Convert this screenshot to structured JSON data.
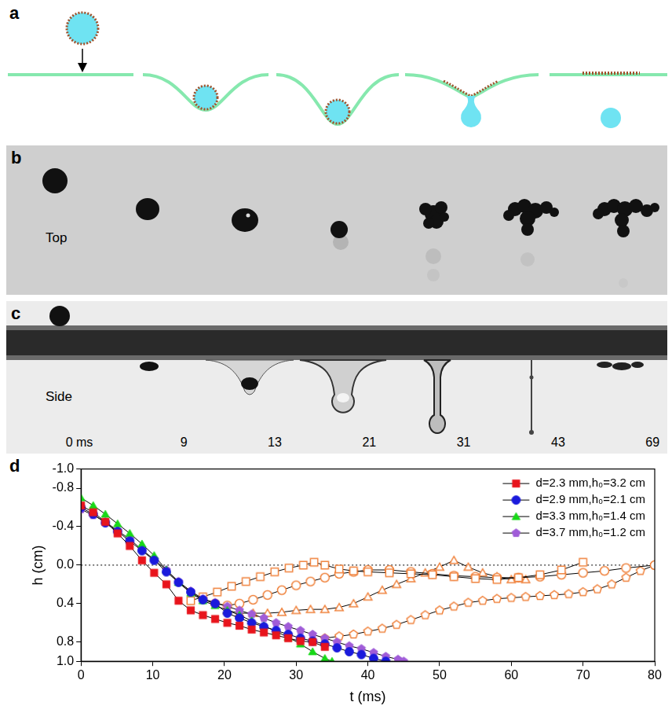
{
  "figure": {
    "panels": [
      "a",
      "b",
      "c",
      "d"
    ],
    "b": {
      "view": "Top"
    },
    "c": {
      "view": "Side",
      "times": [
        "0 ms",
        "9",
        "13",
        "21",
        "31",
        "43",
        "69"
      ]
    }
  },
  "chart_data": {
    "type": "line",
    "x_label": "t (ms)",
    "y_label": "h (cm)",
    "xlim": [
      0,
      80
    ],
    "xticks": [
      0,
      10,
      20,
      30,
      40,
      50,
      60,
      70,
      80
    ],
    "ylim": [
      1.0,
      -1.0
    ],
    "yticks": [
      {
        "value": -1.0,
        "label": "-1.0"
      },
      {
        "value": -0.8,
        "label": "-0.8"
      },
      {
        "value": -0.4,
        "label": "-0.4"
      },
      {
        "value": 0,
        "label": "0.0"
      },
      {
        "value": 0.4,
        "label": "0.4"
      },
      {
        "value": 0.8,
        "label": "0.8"
      },
      {
        "value": 1.0,
        "label": "1.0"
      }
    ],
    "grid": false,
    "legend": "upper right",
    "hlines": [
      0
    ],
    "series": [
      {
        "name": "d=2.3 mm,h₀=3.2 cm",
        "color": "#e8141c",
        "marker": "square",
        "x": [
          0,
          1.7,
          3.4,
          5.1,
          6.8,
          8.5,
          10.2,
          11.9,
          13.6,
          15.3,
          17,
          18.7,
          20.4,
          22.1,
          23.8,
          25.5,
          27.2,
          28.9,
          30.6,
          32.3,
          34
        ],
        "values": [
          -0.62,
          -0.55,
          -0.45,
          -0.33,
          -0.2,
          -0.05,
          0.08,
          0.2,
          0.37,
          0.47,
          0.52,
          0.56,
          0.6,
          0.63,
          0.67,
          0.7,
          0.73,
          0.76,
          0.79,
          0.8,
          0.85
        ]
      },
      {
        "name": "d=2.9 mm,h₀=2.1 cm",
        "color": "#1a1adc",
        "marker": "circle",
        "x": [
          0,
          1.7,
          3.4,
          5.1,
          6.8,
          8.5,
          10.2,
          11.9,
          13.6,
          15.3,
          17,
          18.7,
          20.4,
          22.1,
          23.8,
          25.5,
          27.2,
          28.9,
          30.6,
          32.3,
          34,
          35.7,
          37.4,
          39.1,
          40.8,
          42.5
        ],
        "values": [
          -0.6,
          -0.53,
          -0.44,
          -0.35,
          -0.25,
          -0.15,
          -0.05,
          0.07,
          0.18,
          0.28,
          0.36,
          0.4,
          0.5,
          0.55,
          0.6,
          0.64,
          0.68,
          0.72,
          0.76,
          0.79,
          0.82,
          0.86,
          0.9,
          0.93,
          0.97,
          1.0
        ]
      },
      {
        "name": "d=3.3 mm,h₀=1.4 cm",
        "color": "#17d817",
        "marker": "triangle",
        "x": [
          0,
          1.7,
          3.4,
          5.1,
          6.8,
          8.5,
          10.2,
          11.9,
          13.6,
          15.3,
          17,
          18.7,
          20.4,
          22.1,
          23.8,
          25.5,
          27.2,
          28.9,
          30.6,
          32.3,
          34,
          35
        ],
        "values": [
          -0.7,
          -0.62,
          -0.53,
          -0.43,
          -0.33,
          -0.22,
          -0.1,
          0.05,
          0.18,
          0.29,
          0.37,
          0.42,
          0.47,
          0.52,
          0.58,
          0.63,
          0.69,
          0.75,
          0.82,
          0.9,
          0.97,
          1.0
        ]
      },
      {
        "name": "d=3.7 mm,h₀=1.2 cm",
        "color": "#a05cd8",
        "marker": "pentagon",
        "x": [
          0,
          1.7,
          3.4,
          5.1,
          6.8,
          8.5,
          10.2,
          11.9,
          13.6,
          15.3,
          17,
          18.7,
          20.4,
          22.1,
          23.8,
          25.5,
          27.2,
          28.9,
          30.6,
          32.3,
          34,
          35.7,
          37.4,
          39.1,
          40.8,
          42.5,
          44.2,
          45
        ],
        "values": [
          -0.58,
          -0.52,
          -0.45,
          -0.36,
          -0.27,
          -0.16,
          -0.06,
          0.05,
          0.17,
          0.27,
          0.35,
          0.39,
          0.43,
          0.47,
          0.51,
          0.55,
          0.6,
          0.64,
          0.68,
          0.72,
          0.76,
          0.8,
          0.84,
          0.87,
          0.91,
          0.95,
          0.98,
          1.0
        ]
      },
      {
        "color": "#f0823c",
        "marker": "square-open",
        "x": [
          15.3,
          17,
          19,
          21,
          23,
          25,
          27,
          29,
          31,
          32.5,
          34,
          36,
          38,
          40,
          43,
          46,
          49,
          52,
          55,
          58,
          61,
          64,
          67,
          70
        ],
        "values": [
          0.37,
          0.33,
          0.28,
          0.22,
          0.17,
          0.12,
          0.07,
          0.03,
          0.0,
          -0.03,
          0.0,
          0.04,
          0.06,
          0.07,
          0.08,
          0.09,
          0.1,
          0.12,
          0.14,
          0.15,
          0.13,
          0.1,
          0.05,
          -0.03
        ]
      },
      {
        "color": "#f0823c",
        "marker": "circle-open",
        "x": [
          18.7,
          20.4,
          22.1,
          24,
          26,
          28,
          30,
          32,
          34,
          36,
          38,
          40,
          43,
          46,
          49,
          52,
          55,
          58,
          61,
          64,
          67,
          70,
          73,
          76,
          80
        ],
        "values": [
          0.4,
          0.42,
          0.4,
          0.36,
          0.31,
          0.26,
          0.21,
          0.17,
          0.13,
          0.09,
          0.07,
          0.05,
          0.05,
          0.07,
          0.09,
          0.11,
          0.12,
          0.13,
          0.13,
          0.12,
          0.1,
          0.08,
          0.06,
          0.03,
          0.0
        ]
      },
      {
        "color": "#f0823c",
        "marker": "triangle-open",
        "x": [
          20.4,
          22.1,
          24,
          26,
          28,
          30,
          32,
          34,
          36,
          38,
          40,
          42,
          44,
          46,
          48,
          50,
          52,
          54,
          56,
          58,
          60,
          62
        ],
        "values": [
          0.47,
          0.5,
          0.5,
          0.5,
          0.49,
          0.47,
          0.46,
          0.46,
          0.44,
          0.4,
          0.33,
          0.26,
          0.2,
          0.14,
          0.08,
          0.02,
          -0.05,
          0.02,
          0.08,
          0.12,
          0.15,
          0.15
        ]
      },
      {
        "color": "#f0823c",
        "marker": "pentagon-open",
        "x": [
          34,
          36,
          38,
          40,
          42,
          44,
          46,
          48,
          50,
          52,
          54,
          56,
          58,
          60,
          62,
          64,
          66,
          68,
          70,
          72,
          74,
          76,
          78,
          80
        ],
        "values": [
          0.76,
          0.74,
          0.72,
          0.69,
          0.66,
          0.62,
          0.57,
          0.52,
          0.47,
          0.43,
          0.39,
          0.37,
          0.35,
          0.34,
          0.33,
          0.32,
          0.31,
          0.3,
          0.28,
          0.25,
          0.2,
          0.13,
          0.06,
          0.0
        ]
      }
    ]
  }
}
